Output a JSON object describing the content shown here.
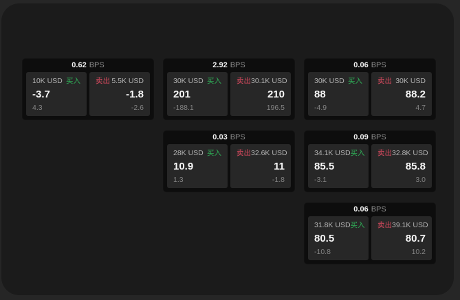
{
  "labels": {
    "bps": "BPS",
    "buy": "买入",
    "sell": "卖出"
  },
  "colors": {
    "canvas_bg": "#262626",
    "window_bg": "#1b1b1b",
    "card_bg": "#0d0d0d",
    "panel_bg": "#272727",
    "buy_green": "#2fae57",
    "sell_red": "#d84a5f",
    "value_white": "#f7f7f7",
    "label_gray": "#b4b4b4",
    "sub_gray": "#848484"
  },
  "cards": [
    {
      "bps": "0.62",
      "buy": {
        "size": "10K USD",
        "value": "-3.7",
        "sub": "4.3"
      },
      "sell": {
        "size": "5.5K USD",
        "value": "-1.8",
        "sub": "-2.6"
      }
    },
    {
      "bps": "2.92",
      "buy": {
        "size": "30K USD",
        "value": "201",
        "sub": "-188.1"
      },
      "sell": {
        "size": "30.1K USD",
        "value": "210",
        "sub": "196.5"
      }
    },
    {
      "bps": "0.06",
      "buy": {
        "size": "30K USD",
        "value": "88",
        "sub": "-4.9"
      },
      "sell": {
        "size": "30K USD",
        "value": "88.2",
        "sub": "4.7"
      }
    },
    {
      "bps": "0.03",
      "buy": {
        "size": "28K USD",
        "value": "10.9",
        "sub": "1.3"
      },
      "sell": {
        "size": "32.6K USD",
        "value": "11",
        "sub": "-1.8"
      }
    },
    {
      "bps": "0.09",
      "buy": {
        "size": "34.1K USD",
        "value": "85.5",
        "sub": "-3.1"
      },
      "sell": {
        "size": "32.8K USD",
        "value": "85.8",
        "sub": "3.0"
      }
    },
    {
      "bps": "0.06",
      "buy": {
        "size": "31.8K USD",
        "value": "80.5",
        "sub": "-10.8"
      },
      "sell": {
        "size": "39.1K USD",
        "value": "80.7",
        "sub": "10.2"
      }
    }
  ]
}
